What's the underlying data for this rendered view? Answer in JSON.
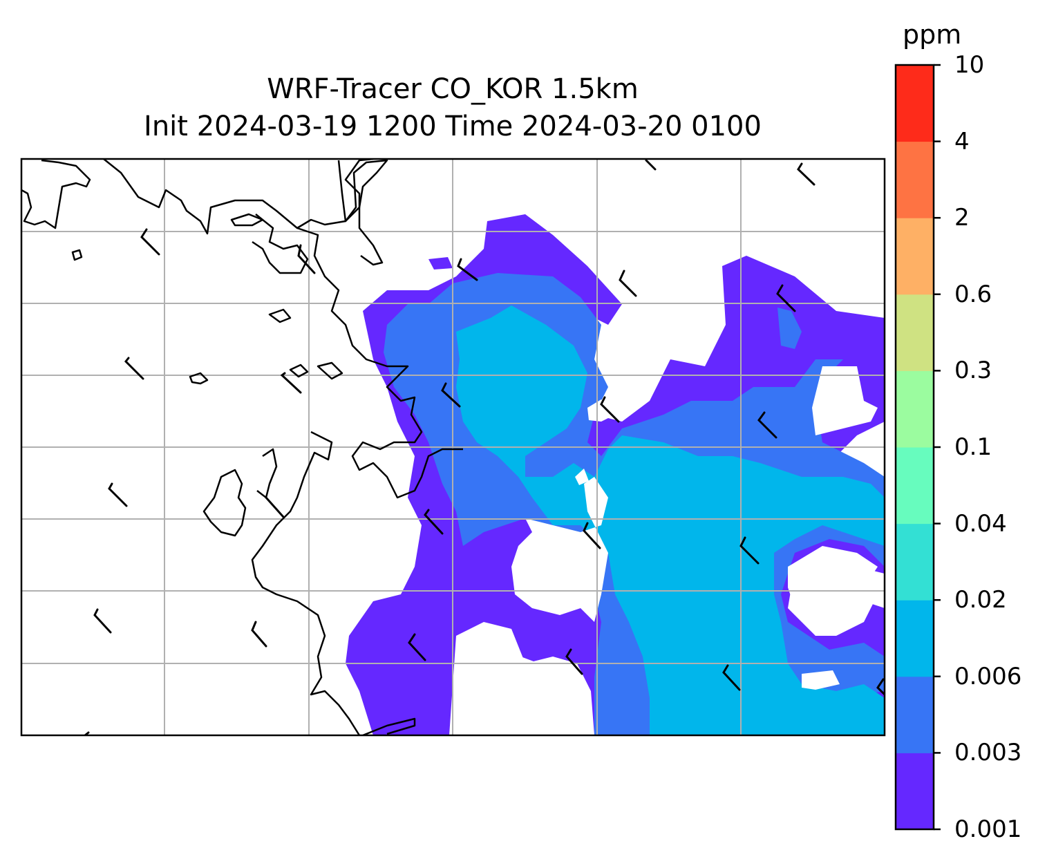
{
  "title_line1": "WRF-Tracer CO_KOR 1.5km",
  "title_line2": "Init 2024-03-19 1200 Time 2024-03-20 0100",
  "colorbar": {
    "unit": "ppm",
    "levels": [
      "0.001",
      "0.003",
      "0.006",
      "0.02",
      "0.04",
      "0.1",
      "0.3",
      "0.6",
      "2",
      "4",
      "10"
    ],
    "colors": [
      "#6528ff",
      "#3775f5",
      "#01b6eb",
      "#33e0d4",
      "#67fcbe",
      "#9bfc9f",
      "#cfe282",
      "#feb065",
      "#fe7343",
      "#fe2b1a"
    ]
  },
  "map": {
    "gridlines": "on",
    "grid_color": "#b0b0b0",
    "coastline_color": "#000000",
    "wind_barbs": "black"
  }
}
